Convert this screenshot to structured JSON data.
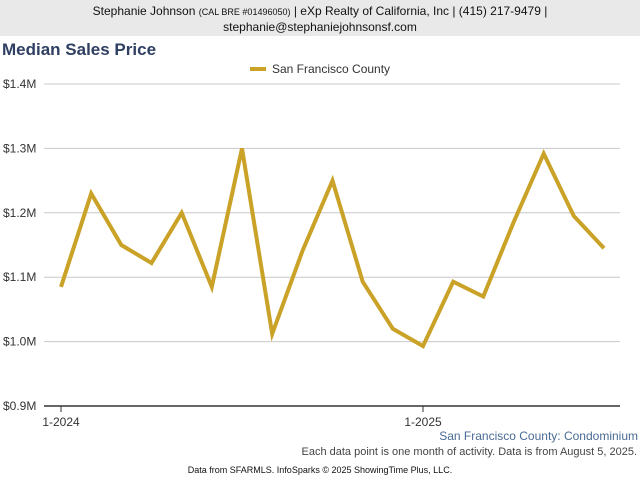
{
  "header": {
    "agent_name": "Stephanie Johnson",
    "license": "(CAL BRE #01496050)",
    "company_info": "| eXp Realty of California, Inc | (415) 217-9479 |",
    "email": "stephanie@stephaniejohnsonsf.com"
  },
  "chart_data": {
    "type": "line",
    "title": "Median Sales Price",
    "x": [
      "1-2024",
      "2-2024",
      "3-2024",
      "4-2024",
      "5-2024",
      "6-2024",
      "7-2024",
      "8-2024",
      "9-2024",
      "10-2024",
      "11-2024",
      "12-2024",
      "1-2025",
      "2-2025",
      "3-2025",
      "4-2025",
      "5-2025",
      "6-2025",
      "7-2025"
    ],
    "x_tick_labels": [
      "1-2024",
      "1-2025"
    ],
    "series": [
      {
        "name": "San Francisco County",
        "color": "#c9a227",
        "values": [
          1085000,
          1230000,
          1150000,
          1122000,
          1200000,
          1085000,
          1300000,
          1012000,
          1140000,
          1250000,
          1093000,
          1020000,
          993000,
          1093000,
          1070000,
          1185000,
          1292000,
          1195000,
          1145000
        ]
      }
    ],
    "y_ticks": [
      {
        "value": 900000,
        "label": "$0.9M"
      },
      {
        "value": 1000000,
        "label": "$1.0M"
      },
      {
        "value": 1100000,
        "label": "$1.1M"
      },
      {
        "value": 1200000,
        "label": "$1.2M"
      },
      {
        "value": 1300000,
        "label": "$1.3M"
      },
      {
        "value": 1400000,
        "label": "$1.4M"
      }
    ],
    "ylim": [
      900000,
      1400000
    ],
    "grid": true,
    "legend_position": "top-center",
    "subtitle": "San Francisco County: Condominium",
    "note": "Each data point is one month of activity. Data is from August 5, 2025."
  },
  "footer": {
    "credits": "Data from SFARMLS. InfoSparks © 2025 ShowingTime Plus, LLC."
  }
}
